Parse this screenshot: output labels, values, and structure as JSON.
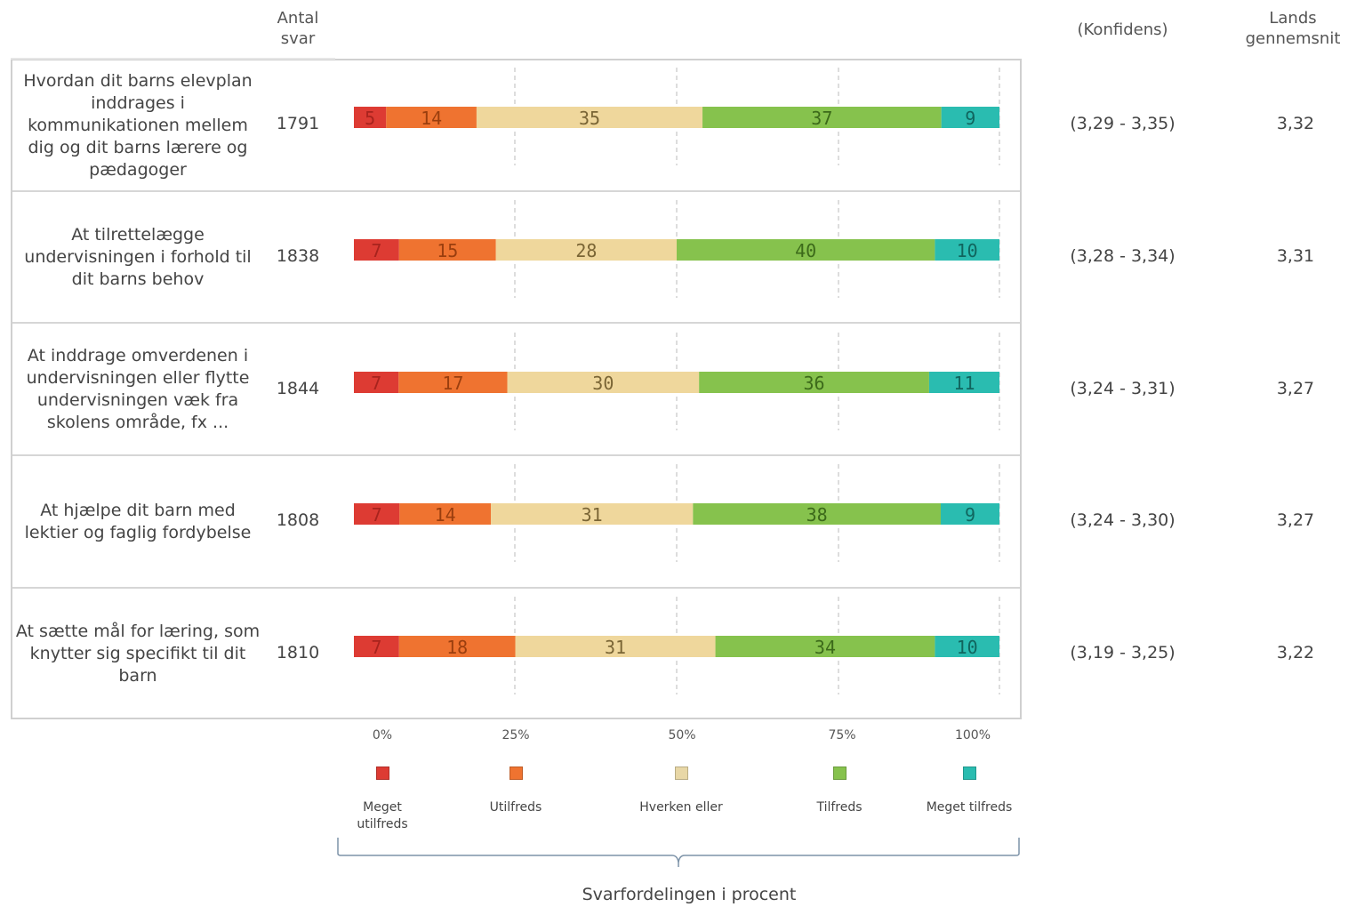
{
  "header": {
    "antal_svar": "Antal\nsvar",
    "konfidens": "(Konfidens)",
    "landsgennemsnit": "Lands\ngennemsnit"
  },
  "rows": [
    {
      "question": "Hvordan dit barns elevplan inddrages i kommunikationen mellem dig og dit barns lærere og pædagoger",
      "count": "1791",
      "confidence": "(3,29 - 3,35)",
      "average": "3,32"
    },
    {
      "question": "At tilrettelægge undervisningen i forhold til dit barns behov",
      "count": "1838",
      "confidence": "(3,28 - 3,34)",
      "average": "3,31"
    },
    {
      "question": "At inddrage omverdenen i undervisningen eller flytte undervisningen væk fra skolens område, fx ...",
      "count": "1844",
      "confidence": "(3,24 - 3,31)",
      "average": "3,27"
    },
    {
      "question": "At hjælpe dit barn med lektier og faglig fordybelse",
      "count": "1808",
      "confidence": "(3,24 - 3,30)",
      "average": "3,27"
    },
    {
      "question": "At sætte mål for læring, som knytter sig specifikt til dit barn",
      "count": "1810",
      "confidence": "(3,19 - 3,25)",
      "average": "3,22"
    }
  ],
  "chart_data": {
    "type": "bar",
    "stacked": true,
    "orientation": "horizontal",
    "categories": [
      "Hvordan dit barns elevplan inddrages i kommunikationen mellem dig og dit barns lærere og pædagoger",
      "At tilrettelægge undervisningen i forhold til dit barns behov",
      "At inddrage omverdenen i undervisningen eller flytte undervisningen væk fra skolens område, fx ...",
      "At hjælpe dit barn med lektier og faglig fordybelse",
      "At sætte mål for læring, som knytter sig specifikt til dit barn"
    ],
    "series": [
      {
        "name": "Meget utilfreds",
        "color": "#dd3b33",
        "label_color": "#a8231d",
        "values": [
          5,
          7,
          7,
          7,
          7
        ]
      },
      {
        "name": "Utilfreds",
        "color": "#ef7330",
        "label_color": "#9a3e0e",
        "values": [
          14,
          15,
          17,
          14,
          18
        ]
      },
      {
        "name": "Hverken eller",
        "color": "#efd79c",
        "label_color": "#7a6535",
        "values": [
          35,
          28,
          30,
          31,
          31
        ]
      },
      {
        "name": "Tilfreds",
        "color": "#86c24d",
        "label_color": "#3c6a1a",
        "values": [
          37,
          40,
          36,
          38,
          34
        ]
      },
      {
        "name": "Meget tilfreds",
        "color": "#2abcb0",
        "label_color": "#10655e",
        "values": [
          9,
          10,
          11,
          9,
          10
        ]
      }
    ],
    "xticks": [
      "0%",
      "25%",
      "50%",
      "75%",
      "100%"
    ],
    "xlim": [
      0,
      100
    ],
    "xlabel": "Svarfordelingen i procent",
    "grid": true,
    "legend_position": "bottom"
  },
  "legend": {
    "items": [
      {
        "label": "Meget\nutilfreds",
        "color": "#dd3b33"
      },
      {
        "label": "Utilfreds",
        "color": "#ef7330"
      },
      {
        "label": "Hverken eller",
        "color": "#e8d7a6"
      },
      {
        "label": "Tilfreds",
        "color": "#86c24d"
      },
      {
        "label": "Meget tilfreds",
        "color": "#2abcb0"
      }
    ]
  }
}
